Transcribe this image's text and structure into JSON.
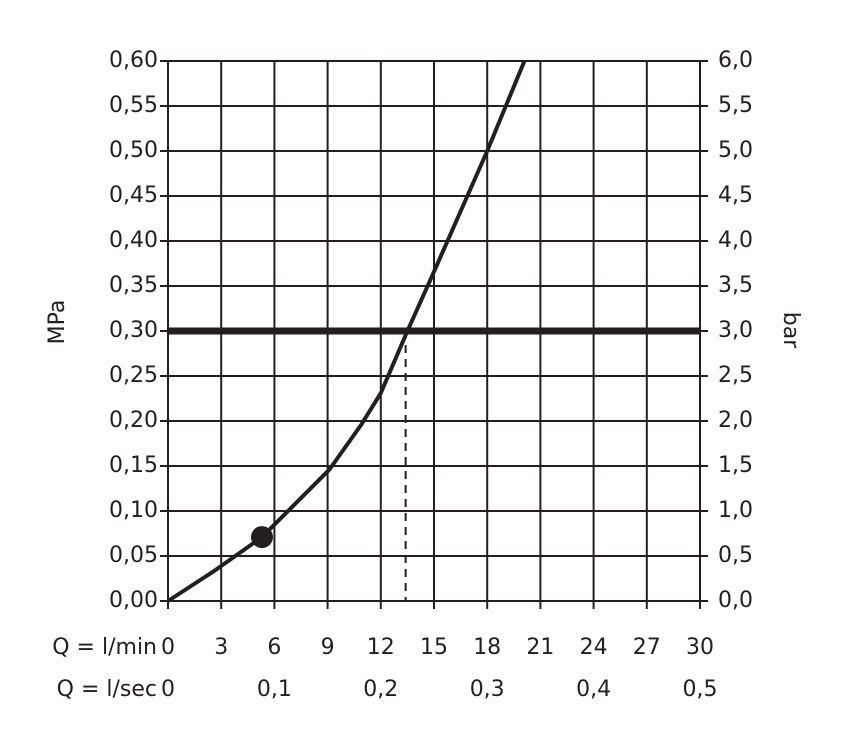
{
  "chart_data": {
    "type": "line",
    "x": [
      0,
      2.65,
      5.3,
      9.1,
      10.9,
      12.0,
      13.5,
      14.8,
      18.0,
      20.1
    ],
    "values": [
      0,
      0.034,
      0.071,
      0.146,
      0.196,
      0.231,
      0.3,
      0.357,
      0.5,
      0.6
    ],
    "color": "#231f20",
    "marker": {
      "x": 5.3,
      "y": 0.071
    },
    "hline": 0.3,
    "vline": 13.4,
    "ylabel": "MPa",
    "y2label": "bar",
    "xlabel": "Q = l/min",
    "x2label": "Q = l/sec",
    "xlim": [
      0,
      30
    ],
    "xticks": [
      0,
      3,
      6,
      9,
      12,
      15,
      18,
      21,
      24,
      27,
      30
    ],
    "x2lim": [
      0,
      0.5
    ],
    "x2ticks": [
      0,
      {
        "value": 0.1,
        "label": "0,1"
      },
      {
        "value": 0.2,
        "label": "0,2"
      },
      {
        "value": 0.3,
        "label": "0,3"
      },
      {
        "value": 0.4,
        "label": "0,4"
      },
      {
        "value": 0.5,
        "label": "0,5"
      }
    ],
    "ylim": [
      0,
      0.6
    ],
    "yticks": [
      {
        "value": 0,
        "label": "0,00"
      },
      {
        "value": 0.05,
        "label": "0,05"
      },
      {
        "value": 0.1,
        "label": "0,10"
      },
      {
        "value": 0.15,
        "label": "0,15"
      },
      {
        "value": 0.2,
        "label": "0,20"
      },
      {
        "value": 0.25,
        "label": "0,25"
      },
      {
        "value": 0.3,
        "label": "0,30"
      },
      {
        "value": 0.35,
        "label": "0,35"
      },
      {
        "value": 0.4,
        "label": "0,40"
      },
      {
        "value": 0.45,
        "label": "0,45"
      },
      {
        "value": 0.5,
        "label": "0,50"
      },
      {
        "value": 0.55,
        "label": "0,55"
      },
      {
        "value": 0.6,
        "label": "0,60"
      }
    ],
    "y2lim": [
      0,
      6
    ],
    "y2ticks": [
      {
        "value": 0,
        "label": "0,0"
      },
      {
        "value": 0.5,
        "label": "0,5"
      },
      {
        "value": 1,
        "label": "1,0"
      },
      {
        "value": 1.5,
        "label": "1,5"
      },
      {
        "value": 2,
        "label": "2,0"
      },
      {
        "value": 2.5,
        "label": "2,5"
      },
      {
        "value": 3,
        "label": "3,0"
      },
      {
        "value": 3.5,
        "label": "3,5"
      },
      {
        "value": 4,
        "label": "4,0"
      },
      {
        "value": 4.5,
        "label": "4,5"
      },
      {
        "value": 5,
        "label": "5,0"
      },
      {
        "value": 5.5,
        "label": "5,5"
      },
      {
        "value": 6,
        "label": "6,0"
      }
    ],
    "grid": true
  }
}
